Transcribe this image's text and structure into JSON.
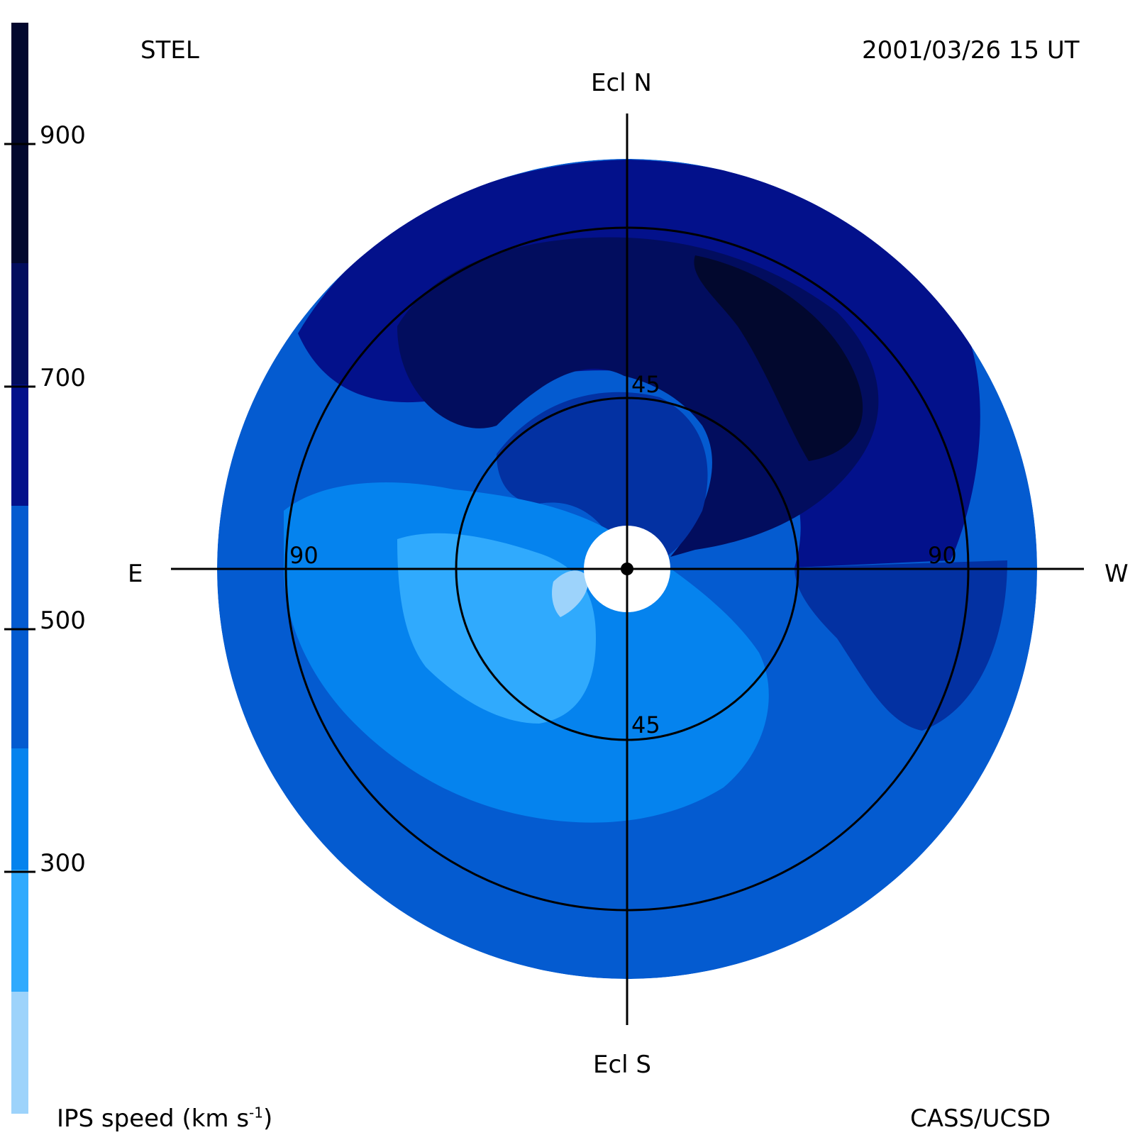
{
  "header": {
    "observatory": "STEL",
    "datetime": "2001/03/26 15 UT"
  },
  "footer": {
    "credit": "CASS/UCSD",
    "quantity": "IPS speed (km s",
    "unit_exponent": "-1",
    "unit_close": ")"
  },
  "directions": {
    "north": "Ecl N",
    "south": "Ecl S",
    "east": "E",
    "west": "W"
  },
  "rings": {
    "inner": "45",
    "outer": "90"
  },
  "colorbar": {
    "ticks": [
      "900",
      "700",
      "500",
      "300"
    ],
    "levels": [
      {
        "color": "#9dd3fb"
      },
      {
        "color": "#30aafd"
      },
      {
        "color": "#0583ee"
      },
      {
        "color": "#045bd0"
      },
      {
        "color": "#0331a2"
      },
      {
        "color": "#03118b"
      },
      {
        "color": "#020d5e"
      },
      {
        "color": "#02082e"
      }
    ]
  }
}
